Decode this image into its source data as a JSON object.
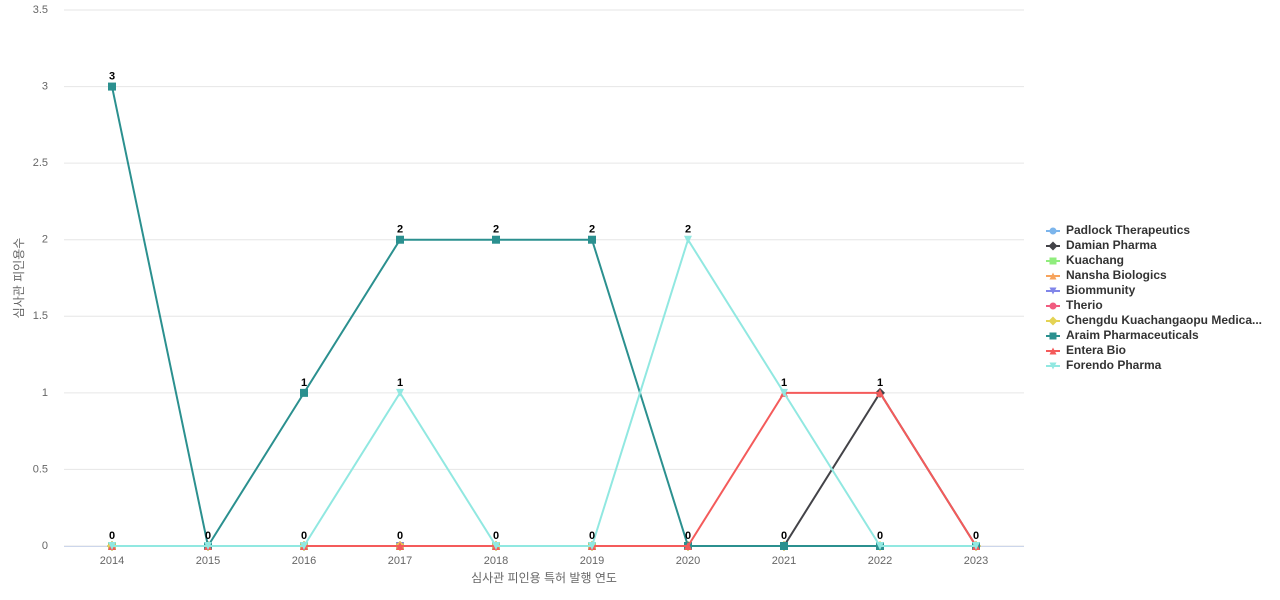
{
  "chart_data": {
    "type": "line",
    "x_label": "심사관 피인용 특허 발행 연도",
    "y_label": "심사관 피인용수",
    "categories": [
      "2014",
      "2015",
      "2016",
      "2017",
      "2018",
      "2019",
      "2020",
      "2021",
      "2022",
      "2023"
    ],
    "ylim": [
      0,
      3.5
    ],
    "yticks": [
      0,
      0.5,
      1,
      1.5,
      2,
      2.5,
      3,
      3.5
    ],
    "grid": true,
    "legend": "right",
    "series": [
      {
        "name": "Padlock Therapeutics",
        "color": "#7cb5ec",
        "values": [
          0,
          0,
          0,
          0,
          0,
          0,
          0,
          0,
          0,
          0
        ]
      },
      {
        "name": "Damian Pharma",
        "color": "#434348",
        "values": [
          0,
          0,
          0,
          0,
          0,
          0,
          0,
          0,
          1,
          0
        ]
      },
      {
        "name": "Kuachang",
        "color": "#90ed7d",
        "values": [
          0,
          0,
          0,
          0,
          0,
          0,
          0,
          0,
          0,
          0
        ]
      },
      {
        "name": "Nansha Biologics",
        "color": "#f7a35c",
        "values": [
          0,
          0,
          0,
          0,
          0,
          0,
          0,
          0,
          0,
          0
        ]
      },
      {
        "name": "Biommunity",
        "color": "#8085e9",
        "values": [
          0,
          0,
          0,
          0,
          0,
          0,
          0,
          0,
          0,
          0
        ]
      },
      {
        "name": "Therio",
        "color": "#f15c80",
        "values": [
          0,
          0,
          0,
          0,
          0,
          0,
          0,
          0,
          0,
          0
        ]
      },
      {
        "name": "Chengdu Kuachangaopu Medica...",
        "color": "#e4d354",
        "values": [
          0,
          0,
          0,
          0,
          0,
          0,
          0,
          0,
          0,
          0
        ]
      },
      {
        "name": "Araim Pharmaceuticals",
        "color": "#2b908f",
        "values": [
          3,
          0,
          1,
          2,
          2,
          2,
          0,
          0,
          0,
          0
        ]
      },
      {
        "name": "Entera Bio",
        "color": "#f45b5b",
        "values": [
          0,
          0,
          0,
          0,
          0,
          0,
          0,
          1,
          1,
          0
        ]
      },
      {
        "name": "Forendo Pharma",
        "color": "#91e8e1",
        "values": [
          0,
          0,
          0,
          1,
          0,
          0,
          2,
          1,
          0,
          0
        ]
      }
    ]
  }
}
